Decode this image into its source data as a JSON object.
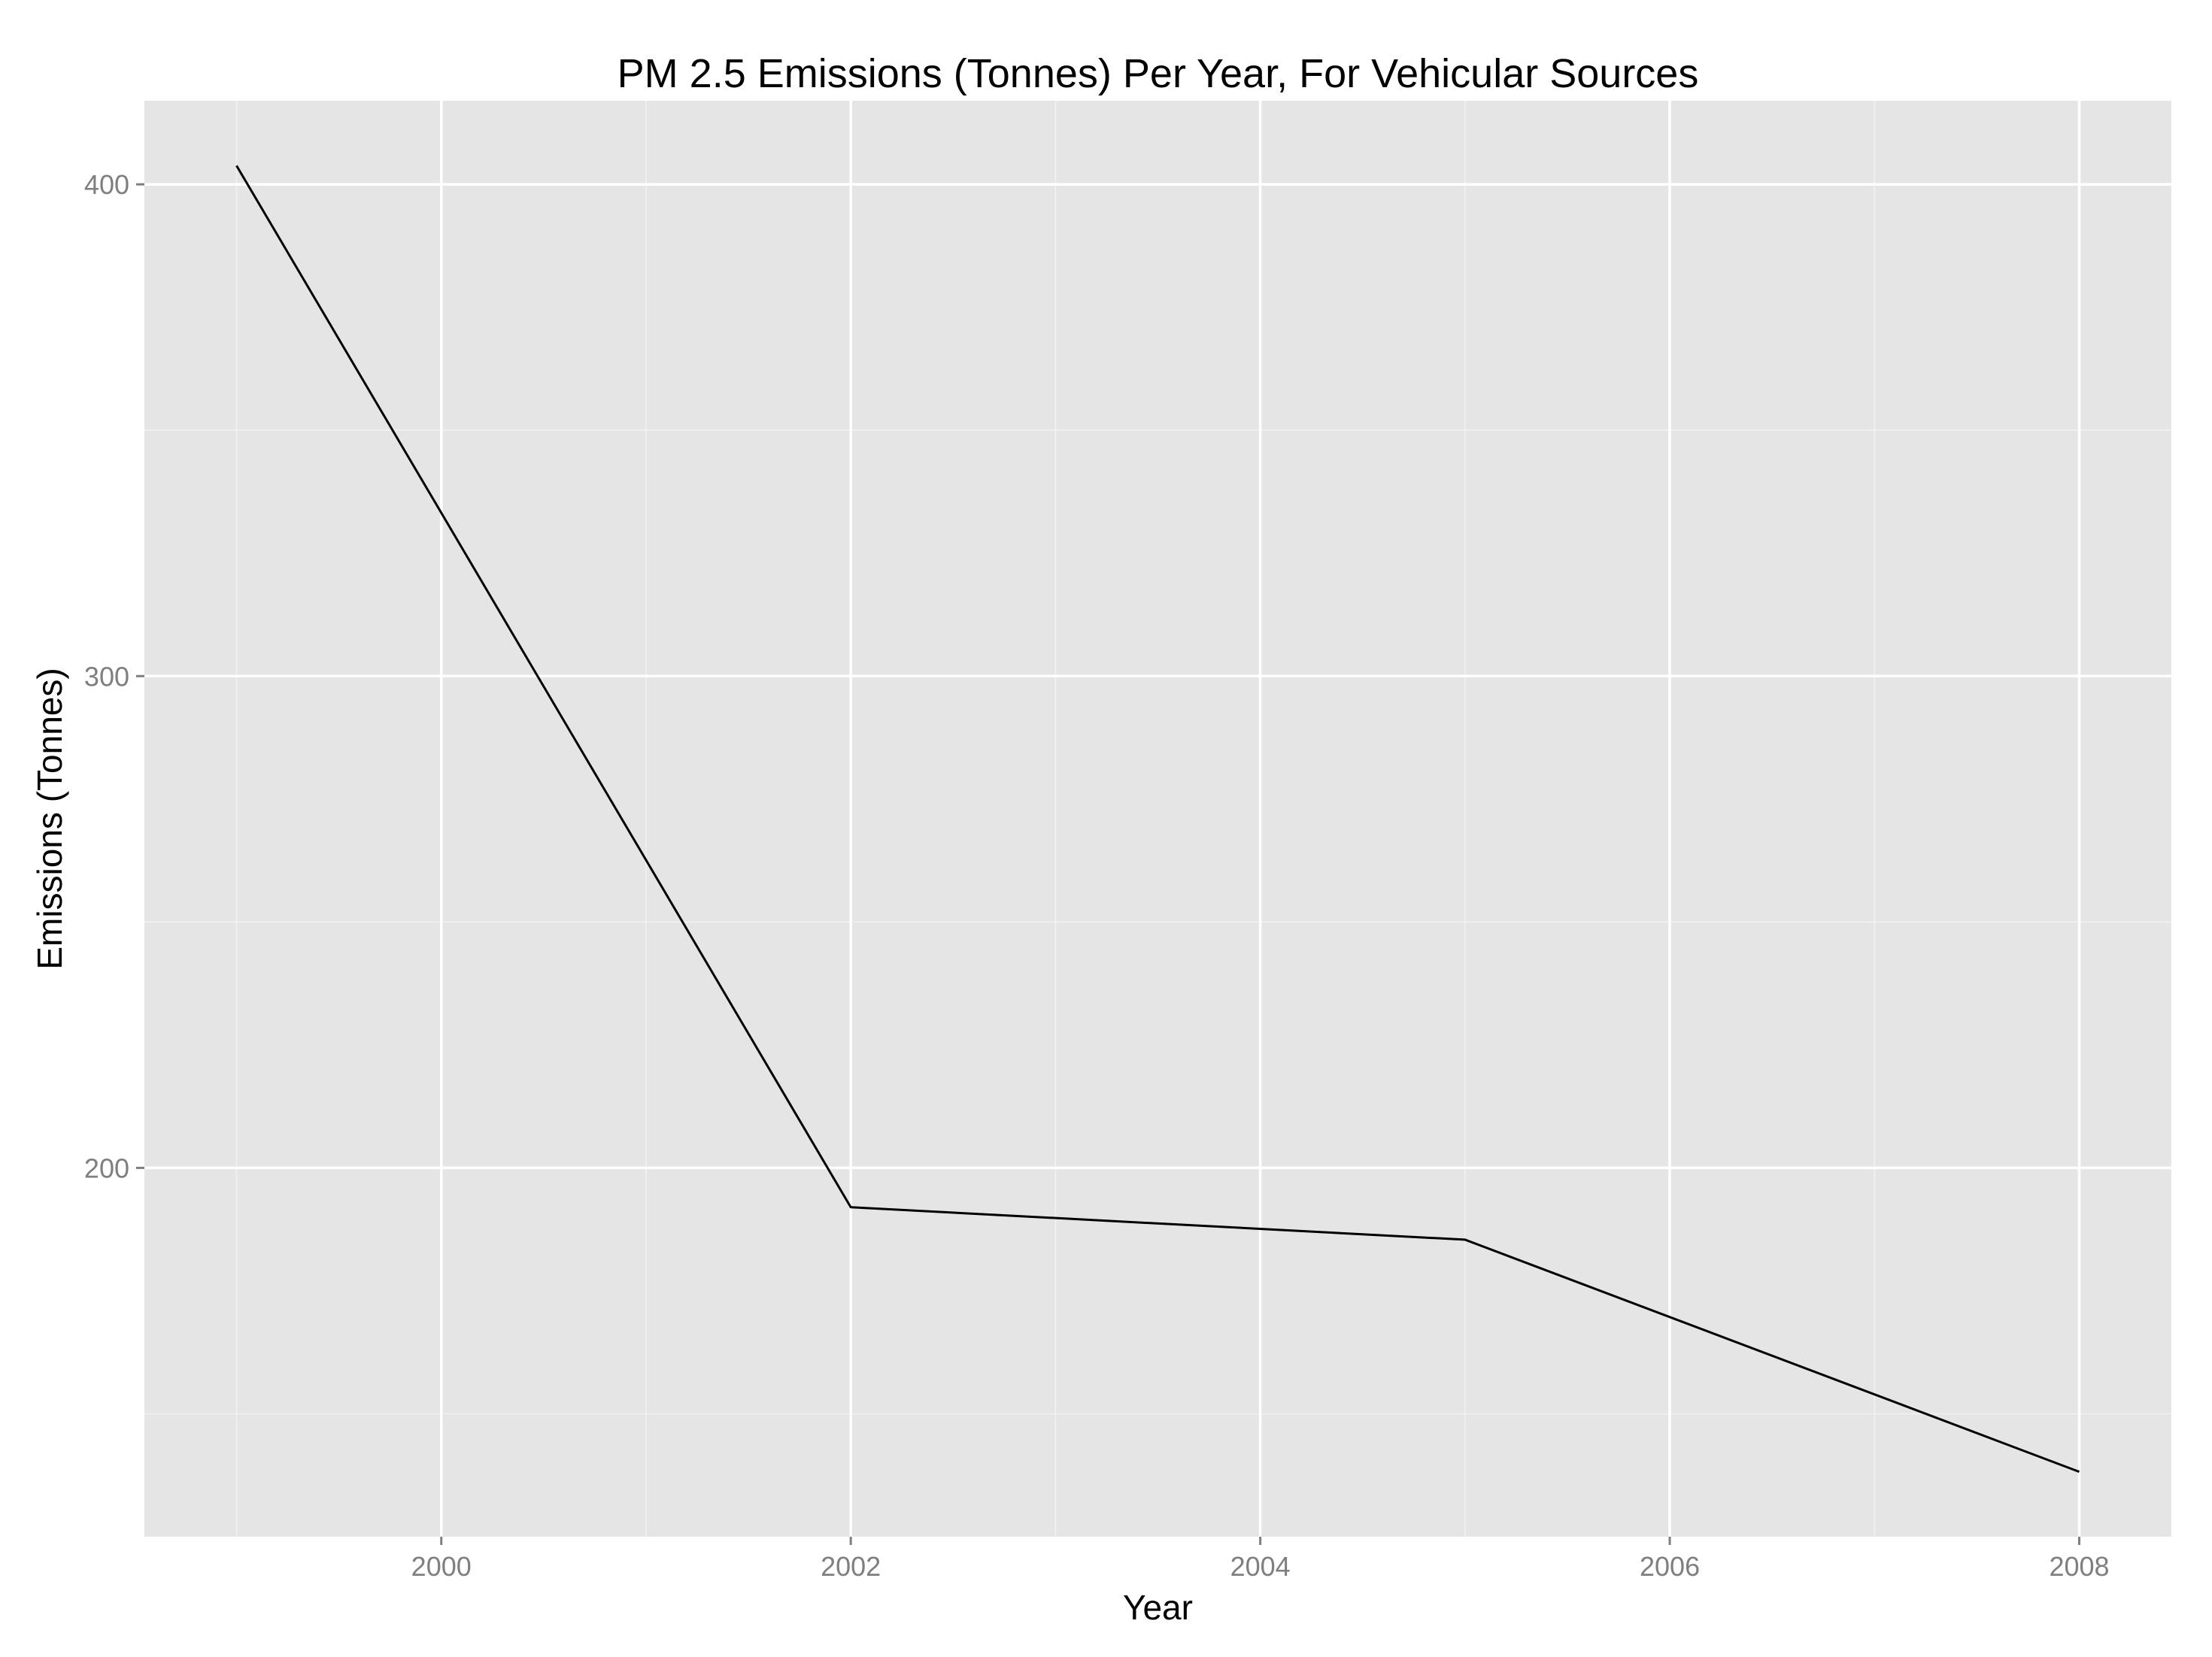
{
  "chart_data": {
    "type": "line",
    "title": "PM 2.5 Emissions (Tonnes) Per Year, For Vehicular Sources",
    "xlabel": "Year",
    "ylabel": "Emissions (Tonnes)",
    "x": [
      1999,
      2002,
      2005,
      2008
    ],
    "series": [
      {
        "values": [
          403.8,
          192.0,
          185.4,
          138.2
        ]
      }
    ],
    "xlim": [
      1998.55,
      2008.45
    ],
    "ylim": [
      125.0,
      417.0
    ],
    "x_ticks": [
      2000,
      2002,
      2004,
      2006,
      2008
    ],
    "x_tick_labels": [
      "2000",
      "2002",
      "2004",
      "2006",
      "2008"
    ],
    "y_ticks": [
      200,
      300,
      400
    ],
    "y_tick_labels": [
      "200",
      "300",
      "400"
    ],
    "grid": true,
    "legend": "none",
    "colors": {
      "panel_background": "#e5e5e5",
      "grid_major": "#ffffff",
      "grid_minor": "#f2f2f2",
      "line": "#000000",
      "tick_label": "#7f7f7f",
      "tick_mark": "#7f7f7f"
    }
  }
}
